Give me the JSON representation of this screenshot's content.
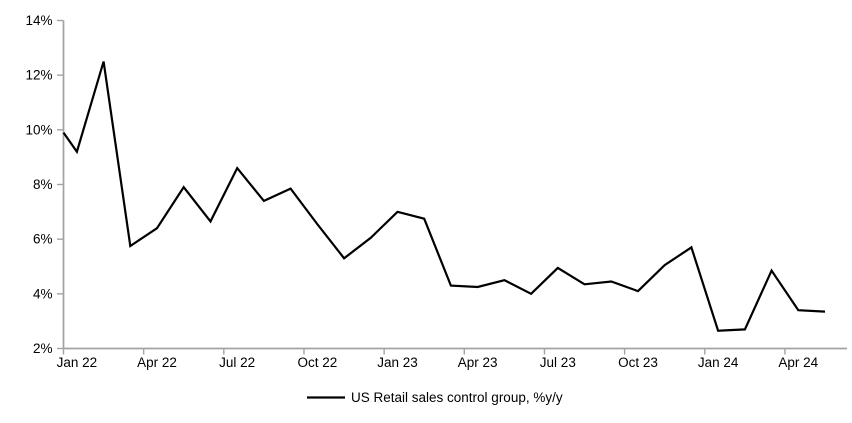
{
  "chart_data": {
    "type": "line",
    "title": "",
    "legend_label": "US Retail sales control group, %y/y",
    "series": [
      {
        "name": "US Retail sales control group, %y/y",
        "categories": [
          "Jan 22",
          "Feb 22",
          "Mar 22",
          "Apr 22",
          "May 22",
          "Jun 22",
          "Jul 22",
          "Aug 22",
          "Sep 22",
          "Oct 22",
          "Nov 22",
          "Dec 22",
          "Jan 23",
          "Feb 23",
          "Mar 23",
          "Apr 23",
          "May 23",
          "Jun 23",
          "Jul 23",
          "Aug 23",
          "Sep 23",
          "Oct 23",
          "Nov 23",
          "Dec 23",
          "Jan 24",
          "Feb 24",
          "Mar 24",
          "Apr 24",
          "May 24"
        ],
        "values": [
          9.2,
          12.5,
          5.75,
          6.4,
          7.9,
          6.65,
          8.6,
          7.4,
          7.85,
          6.55,
          5.3,
          6.05,
          7.0,
          6.75,
          4.3,
          4.25,
          4.5,
          4.0,
          4.95,
          4.35,
          4.45,
          4.1,
          5.05,
          5.7,
          2.65,
          2.7,
          4.85,
          3.4,
          3.35
        ],
        "left_edge_entry_value": 9.9
      }
    ],
    "xlabel": "",
    "ylabel": "",
    "x_tick_labels": [
      "Jan 22",
      "Apr 22",
      "Jul 22",
      "Oct 22",
      "Jan 23",
      "Apr 23",
      "Jul 23",
      "Oct 23",
      "Jan 24",
      "Apr 24"
    ],
    "x_tick_interval_months": 3,
    "y_tick_labels": [
      "2%",
      "4%",
      "6%",
      "8%",
      "10%",
      "12%",
      "14%"
    ],
    "y_tick_values": [
      2,
      4,
      6,
      8,
      10,
      12,
      14
    ],
    "ylim": [
      2,
      14
    ],
    "grid": "off",
    "legend_position": "bottom-center",
    "colors": {
      "line": "#000000",
      "axis": "#a3a3a3",
      "text": "#000000",
      "background": "#ffffff"
    }
  }
}
